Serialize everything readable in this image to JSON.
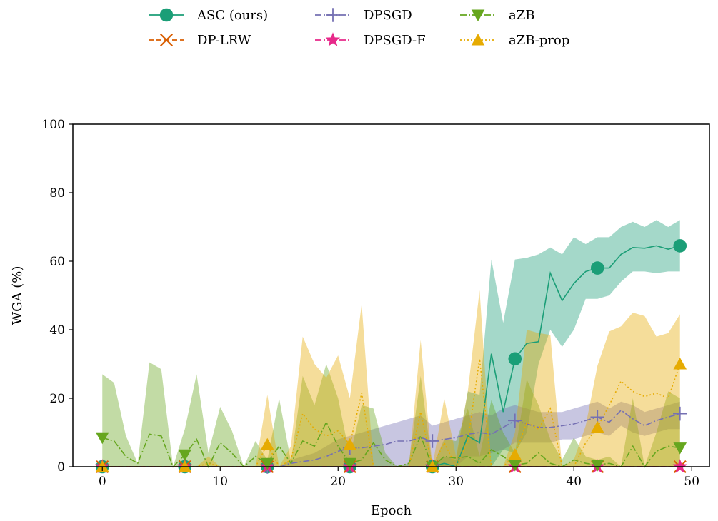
{
  "chart_data": {
    "type": "line",
    "xlabel": "Epoch",
    "ylabel": "WGA (%)",
    "xlim": [
      -2.5,
      51.5
    ],
    "ylim": [
      0,
      100
    ],
    "xticks": [
      0,
      10,
      20,
      30,
      40,
      50
    ],
    "yticks": [
      0,
      20,
      40,
      60,
      80,
      100
    ],
    "grid": false,
    "legend_position": "top-center",
    "series": [
      {
        "name": "ASC (ours)",
        "color": "#1b9e77",
        "linestyle": "solid",
        "marker": "circle",
        "marker_every": 7,
        "x": [
          0,
          1,
          2,
          3,
          4,
          5,
          6,
          7,
          8,
          9,
          10,
          11,
          12,
          13,
          14,
          15,
          16,
          17,
          18,
          19,
          20,
          21,
          22,
          23,
          24,
          25,
          26,
          27,
          28,
          29,
          30,
          31,
          32,
          33,
          34,
          35,
          36,
          37,
          38,
          39,
          40,
          41,
          42,
          43,
          44,
          45,
          46,
          47,
          48,
          49
        ],
        "y": [
          0,
          0,
          0,
          0,
          0,
          0,
          0,
          0,
          0,
          0,
          0,
          0,
          0,
          0,
          0,
          0,
          0,
          0,
          0,
          0,
          0,
          0,
          0,
          0,
          0,
          0,
          0,
          0,
          0,
          1,
          0,
          9,
          7,
          33,
          16,
          31.5,
          36,
          36.5,
          56.5,
          48.5,
          53.5,
          57,
          58,
          58,
          62,
          64,
          63.8,
          64.5,
          63.5,
          64.5
        ],
        "lower": [
          0,
          0,
          0,
          0,
          0,
          0,
          0,
          0,
          0,
          0,
          0,
          0,
          0,
          0,
          0,
          0,
          0,
          0,
          0,
          0,
          0,
          0,
          0,
          0,
          0,
          0,
          0,
          0,
          0,
          0,
          0,
          0,
          0,
          0,
          5,
          4,
          10,
          30,
          40,
          35,
          40,
          49,
          49,
          50,
          54,
          57,
          57,
          56.5,
          57,
          57
        ],
        "upper": [
          0,
          0,
          0,
          0,
          0,
          0,
          0,
          0,
          0,
          0,
          0,
          0,
          0,
          0,
          0,
          0,
          0,
          0,
          0,
          0,
          0,
          0,
          0,
          0,
          0,
          0,
          0,
          0,
          0,
          3,
          2,
          22,
          21,
          60.5,
          42,
          60.5,
          61,
          62,
          64,
          62,
          67,
          65,
          67,
          67,
          70,
          71.5,
          70,
          72,
          70,
          72
        ]
      },
      {
        "name": "DP-LRW",
        "color": "#d95f02",
        "linestyle": "dashed",
        "marker": "x",
        "marker_every": 7,
        "x": [
          0,
          7,
          14,
          21,
          28,
          35,
          42,
          49
        ],
        "y": [
          0,
          0,
          0,
          0,
          0,
          0,
          0,
          0
        ]
      },
      {
        "name": "DPSGD",
        "color": "#7570b3",
        "linestyle": "dashdot",
        "marker": "plus",
        "marker_every": 7,
        "x": [
          14,
          15,
          16,
          17,
          18,
          19,
          20,
          21,
          22,
          23,
          24,
          25,
          26,
          27,
          28,
          29,
          30,
          31,
          32,
          33,
          34,
          35,
          36,
          37,
          38,
          39,
          40,
          41,
          42,
          43,
          44,
          45,
          46,
          47,
          48,
          49
        ],
        "y": [
          0,
          0,
          1,
          1.5,
          2,
          3,
          4.5,
          5.5,
          5.5,
          6,
          6.5,
          7.5,
          7.5,
          8.5,
          7.5,
          8,
          8.5,
          9.5,
          10,
          9.5,
          11.5,
          13.5,
          12.5,
          11.5,
          11.5,
          12,
          12.5,
          13.5,
          14.5,
          13,
          16.5,
          14,
          12,
          13.5,
          14.5,
          15.5
        ],
        "lower": [
          0,
          0,
          0,
          0,
          0,
          0,
          0,
          0,
          0,
          0,
          0,
          0,
          0,
          0,
          0,
          0,
          0,
          3,
          3,
          4,
          5,
          7,
          7,
          7,
          7,
          8,
          8,
          9,
          10,
          9,
          12,
          10,
          9,
          10,
          11,
          11
        ],
        "upper": [
          0,
          0,
          2,
          3,
          4,
          6,
          8,
          9,
          10,
          11,
          12,
          13,
          14,
          15,
          12,
          13,
          14,
          15,
          16,
          15,
          17,
          18,
          17,
          16,
          16,
          16,
          17,
          18,
          19,
          17,
          19,
          18,
          16,
          17,
          18,
          19
        ]
      },
      {
        "name": "DPSGD-F",
        "color": "#e7298a",
        "linestyle": "dashdot",
        "marker": "star",
        "marker_every": 7,
        "x": [
          0,
          7,
          14,
          21,
          28,
          35,
          42,
          49
        ],
        "y": [
          0,
          0,
          0,
          0,
          0,
          0,
          0,
          0
        ]
      },
      {
        "name": "aZB",
        "color": "#66a61e",
        "linestyle": "dashdot",
        "marker": "triangle-down",
        "marker_every": 7,
        "x": [
          0,
          1,
          2,
          3,
          4,
          5,
          6,
          7,
          8,
          9,
          10,
          11,
          12,
          13,
          14,
          15,
          16,
          17,
          18,
          19,
          20,
          21,
          22,
          23,
          24,
          25,
          26,
          27,
          28,
          29,
          30,
          31,
          32,
          33,
          34,
          35,
          36,
          37,
          38,
          39,
          40,
          41,
          42,
          43,
          44,
          45,
          46,
          47,
          48,
          49
        ],
        "y": [
          8.5,
          7.5,
          3,
          1,
          9.5,
          9,
          0,
          3.5,
          8,
          0,
          7,
          4,
          0,
          3,
          1,
          6,
          1,
          7.5,
          6,
          13,
          6,
          1,
          2,
          7,
          2,
          0,
          1,
          9,
          0,
          3,
          2.5,
          3,
          1,
          5,
          3,
          0.5,
          1,
          4,
          1,
          0,
          2,
          1,
          0.5,
          1,
          0,
          6,
          0,
          4.5,
          6,
          5.5
        ],
        "lower": [
          0,
          0,
          0,
          0,
          0,
          0,
          0,
          0,
          0,
          0,
          0,
          0,
          0,
          0,
          0,
          0,
          0,
          0,
          0,
          0,
          0,
          0,
          0,
          0,
          0,
          0,
          0,
          0,
          0,
          0,
          0,
          0,
          0,
          0,
          0,
          0,
          0,
          0,
          0,
          0,
          0,
          0,
          0,
          0,
          0,
          0,
          0,
          0,
          0,
          0
        ],
        "upper": [
          27,
          24.5,
          9,
          1,
          30.5,
          28.5,
          0,
          11,
          27,
          4,
          17.5,
          10.5,
          0,
          7.5,
          2,
          20,
          1.5,
          26.5,
          18,
          30,
          20,
          3,
          18,
          17,
          4,
          0,
          1,
          26.5,
          0,
          8,
          7.5,
          17,
          3,
          19.5,
          10,
          4,
          25.5,
          18,
          8,
          2,
          8.5,
          3,
          2,
          3,
          0,
          20,
          0,
          10,
          22,
          20
        ]
      },
      {
        "name": "aZB-prop",
        "color": "#e6ab02",
        "linestyle": "dotted",
        "marker": "triangle-up",
        "marker_every": 7,
        "x": [
          0,
          1,
          2,
          3,
          4,
          5,
          6,
          7,
          8,
          9,
          10,
          11,
          12,
          13,
          14,
          15,
          16,
          17,
          18,
          19,
          20,
          21,
          22,
          23,
          24,
          25,
          26,
          27,
          28,
          29,
          30,
          31,
          32,
          33,
          34,
          35,
          36,
          37,
          38,
          39,
          40,
          41,
          42,
          43,
          44,
          45,
          46,
          47,
          48,
          49
        ],
        "y": [
          0,
          0,
          0,
          0,
          0,
          0,
          0,
          0,
          0,
          1,
          0,
          0,
          0,
          0,
          6.5,
          0,
          2,
          15.5,
          11,
          9,
          10.5,
          6.5,
          21.5,
          0,
          0,
          0,
          0,
          16,
          0,
          7,
          0,
          7.5,
          31.5,
          0,
          0,
          3.5,
          13,
          11,
          17,
          0,
          0,
          7,
          11.5,
          18,
          25,
          22,
          20.5,
          21.5,
          20,
          30
        ],
        "lower": [
          0,
          0,
          0,
          0,
          0,
          0,
          0,
          0,
          0,
          0,
          0,
          0,
          0,
          0,
          0,
          0,
          0,
          0,
          0,
          0,
          0,
          0,
          0,
          0,
          0,
          0,
          0,
          0,
          0,
          0,
          0,
          0,
          0,
          0,
          0,
          0,
          0,
          0,
          0,
          0,
          0,
          0,
          0,
          0,
          0,
          0,
          0,
          0,
          0,
          0
        ],
        "upper": [
          0,
          0,
          0,
          0,
          0,
          0,
          0,
          0,
          0,
          3,
          0,
          0,
          0,
          0,
          21,
          0,
          6,
          38,
          30,
          26,
          32.5,
          20,
          47.5,
          0,
          0,
          0,
          0,
          37,
          0,
          20,
          3,
          22,
          51.5,
          0,
          0,
          10,
          40,
          39,
          38.5,
          0,
          2,
          12,
          29.5,
          39.5,
          41,
          45,
          44,
          38,
          39,
          44.5
        ]
      }
    ]
  }
}
